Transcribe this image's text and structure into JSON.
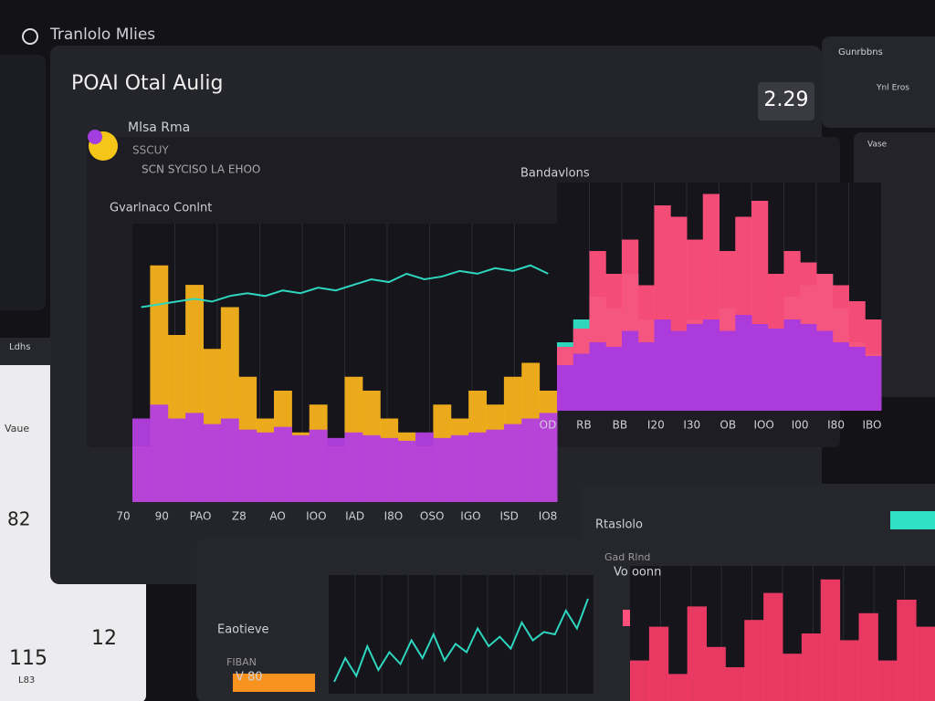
{
  "app": {
    "title": "Tranlolo Mlies"
  },
  "main": {
    "title": "POAI Otal Aulig",
    "badge": "2.29",
    "profile": {
      "name": "Mlsa Rma",
      "sub": "SSCUY",
      "line": "SCN SYCISO LA EHOO"
    }
  },
  "side_left": {
    "items": [
      "Ldhs",
      "Vaue",
      "115",
      "12",
      "82",
      "L83"
    ]
  },
  "side_right": {
    "items": [
      "Gunrbbns",
      "Ynl Eros",
      "Vase"
    ]
  },
  "charts": [
    {
      "type": "bar",
      "title": "Gvarlnaco Conlnt",
      "ylim": [
        0,
        100
      ],
      "x_labels": [
        "70",
        "90",
        "PAO",
        "Z8",
        "AO",
        "IOO",
        "IAD",
        "I8O",
        "OSO",
        "IGO",
        "ISD",
        "IO8"
      ],
      "series": [
        {
          "color": "#f7b21b",
          "values": [
            20,
            85,
            60,
            78,
            55,
            70,
            45,
            30,
            40,
            25,
            35,
            20,
            45,
            40,
            30,
            25,
            20,
            35,
            30,
            40,
            35,
            45,
            50,
            40
          ]
        },
        {
          "color": "#b33ee0",
          "values": [
            30,
            35,
            30,
            32,
            28,
            30,
            26,
            25,
            27,
            24,
            26,
            23,
            25,
            24,
            23,
            22,
            25,
            23,
            24,
            25,
            26,
            28,
            30,
            32
          ]
        }
      ],
      "line": {
        "color": "#2fd6bf",
        "values": [
          70,
          71,
          72,
          73,
          72,
          74,
          75,
          74,
          76,
          75,
          77,
          76,
          78,
          80,
          79,
          82,
          80,
          81,
          83,
          82,
          84,
          83,
          85,
          82
        ]
      }
    },
    {
      "type": "bar",
      "title": "Bandavlons",
      "ylim": [
        0,
        100
      ],
      "x_labels": [
        "OD",
        "RB",
        "BB",
        "I20",
        "I30",
        "OB",
        "IOO",
        "I00",
        "I80",
        "IBO"
      ],
      "series": [
        {
          "color": "#2fe0c4",
          "values": [
            30,
            40,
            50,
            45,
            60,
            40,
            35,
            30,
            40,
            35,
            45,
            40,
            38,
            36,
            50,
            55,
            60,
            45,
            30,
            25
          ]
        },
        {
          "color": "#ff4f7b",
          "values": [
            28,
            36,
            70,
            60,
            75,
            55,
            90,
            85,
            75,
            95,
            70,
            85,
            92,
            60,
            70,
            65,
            60,
            55,
            48,
            40
          ]
        },
        {
          "color": "#a63be0",
          "values": [
            20,
            25,
            30,
            28,
            35,
            30,
            40,
            35,
            38,
            40,
            35,
            42,
            38,
            36,
            40,
            38,
            35,
            30,
            28,
            24
          ]
        }
      ]
    },
    {
      "type": "line",
      "title": "Eaotieve",
      "sub": "FIBAN",
      "label": "V 80",
      "ylim": [
        0,
        100
      ],
      "line": {
        "color": "#2fd6bf",
        "values": [
          10,
          30,
          15,
          40,
          20,
          35,
          25,
          45,
          30,
          50,
          28,
          42,
          35,
          55,
          40,
          48,
          38,
          60,
          45,
          52,
          50,
          70,
          55,
          80
        ]
      }
    },
    {
      "type": "bar",
      "title": "Rtaslolo",
      "sub": "Gad Rlnd",
      "label": "Vo oonn",
      "ylim": [
        0,
        100
      ],
      "series": [
        {
          "color": "#ff3d6a",
          "values": [
            30,
            55,
            20,
            70,
            40,
            25,
            60,
            80,
            35,
            50,
            90,
            45,
            65,
            30,
            75,
            55
          ]
        }
      ]
    }
  ]
}
